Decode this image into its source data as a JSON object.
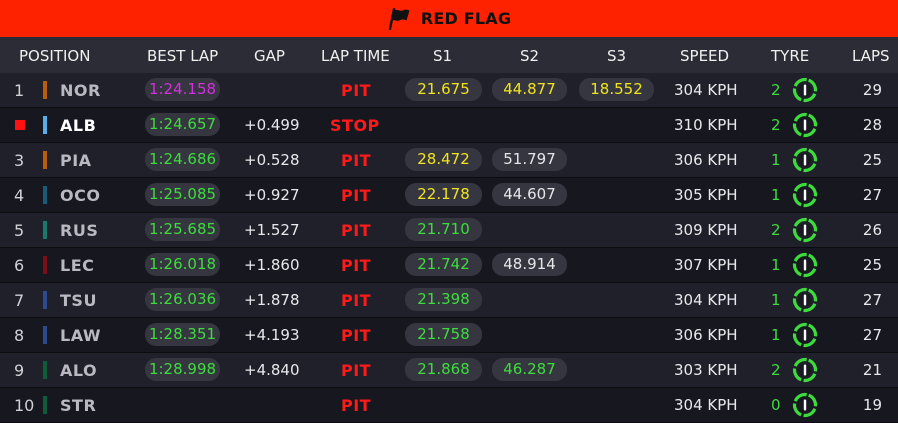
{
  "banner": {
    "title": "RED FLAG",
    "icon": "checkered-flag-icon"
  },
  "headers": {
    "position": "POSITION",
    "best_lap": "BEST LAP",
    "gap": "GAP",
    "lap_time": "LAP TIME",
    "s1": "S1",
    "s2": "S2",
    "s3": "S3",
    "speed": "SPEED",
    "tyre": "TYRE",
    "laps": "LAPS"
  },
  "colors": {
    "banner": "#ff2200",
    "purple": "#d62ee0",
    "green": "#3ddc3d",
    "yellow": "#f0e41c",
    "status_red": "#ff1a1a"
  },
  "rows": [
    {
      "pos": "1",
      "team_color": "#b85c0d",
      "code": "NOR",
      "best": "1:24.158",
      "best_color": "purple",
      "gap": "",
      "status": "PIT",
      "s1": "21.675",
      "s1_color": "yellow",
      "s2": "44.877",
      "s2_color": "yellow",
      "s3": "18.552",
      "s3_color": "yellow",
      "speed": "304 KPH",
      "tyre": "2",
      "laps": "29"
    },
    {
      "pos": "",
      "flag": true,
      "team_color": "#5aaee8",
      "code": "ALB",
      "highlight": true,
      "best": "1:24.657",
      "best_color": "green",
      "gap": "+0.499",
      "status": "STOP",
      "s1": "",
      "s2": "",
      "s3": "",
      "speed": "310 KPH",
      "tyre": "2",
      "laps": "28"
    },
    {
      "pos": "3",
      "team_color": "#b85c0d",
      "code": "PIA",
      "best": "1:24.686",
      "best_color": "green",
      "gap": "+0.528",
      "status": "PIT",
      "s1": "28.472",
      "s1_color": "yellow",
      "s2": "51.797",
      "s2_color": "white",
      "s3": "",
      "speed": "306 KPH",
      "tyre": "1",
      "laps": "25"
    },
    {
      "pos": "4",
      "team_color": "#1b5b7a",
      "code": "OCO",
      "best": "1:25.085",
      "best_color": "green",
      "gap": "+0.927",
      "status": "PIT",
      "s1": "22.178",
      "s1_color": "yellow",
      "s2": "44.607",
      "s2_color": "white",
      "s3": "",
      "speed": "305 KPH",
      "tyre": "1",
      "laps": "27"
    },
    {
      "pos": "5",
      "team_color": "#1a7a6a",
      "code": "RUS",
      "best": "1:25.685",
      "best_color": "green",
      "gap": "+1.527",
      "status": "PIT",
      "s1": "21.710",
      "s1_color": "green",
      "s2": "",
      "s3": "",
      "speed": "309 KPH",
      "tyre": "2",
      "laps": "26"
    },
    {
      "pos": "6",
      "team_color": "#7a0d16",
      "code": "LEC",
      "best": "1:26.018",
      "best_color": "green",
      "gap": "+1.860",
      "status": "PIT",
      "s1": "21.742",
      "s1_color": "green",
      "s2": "48.914",
      "s2_color": "white",
      "s3": "",
      "speed": "307 KPH",
      "tyre": "1",
      "laps": "25"
    },
    {
      "pos": "7",
      "team_color": "#2d4a8c",
      "code": "TSU",
      "best": "1:26.036",
      "best_color": "green",
      "gap": "+1.878",
      "status": "PIT",
      "s1": "21.398",
      "s1_color": "green",
      "s2": "",
      "s3": "",
      "speed": "304 KPH",
      "tyre": "1",
      "laps": "27"
    },
    {
      "pos": "8",
      "team_color": "#2d4a8c",
      "code": "LAW",
      "best": "1:28.351",
      "best_color": "green",
      "gap": "+4.193",
      "status": "PIT",
      "s1": "21.758",
      "s1_color": "green",
      "s2": "",
      "s3": "",
      "speed": "306 KPH",
      "tyre": "1",
      "laps": "27"
    },
    {
      "pos": "9",
      "team_color": "#0f5c3a",
      "code": "ALO",
      "best": "1:28.998",
      "best_color": "green",
      "gap": "+4.840",
      "status": "PIT",
      "s1": "21.868",
      "s1_color": "green",
      "s2": "46.287",
      "s2_color": "green",
      "s3": "",
      "speed": "303 KPH",
      "tyre": "2",
      "laps": "21"
    },
    {
      "pos": "10",
      "team_color": "#0f5c3a",
      "code": "STR",
      "best": "",
      "gap": "",
      "status": "PIT",
      "s1": "",
      "s2": "",
      "s3": "",
      "speed": "304 KPH",
      "tyre": "0",
      "laps": "19"
    }
  ]
}
